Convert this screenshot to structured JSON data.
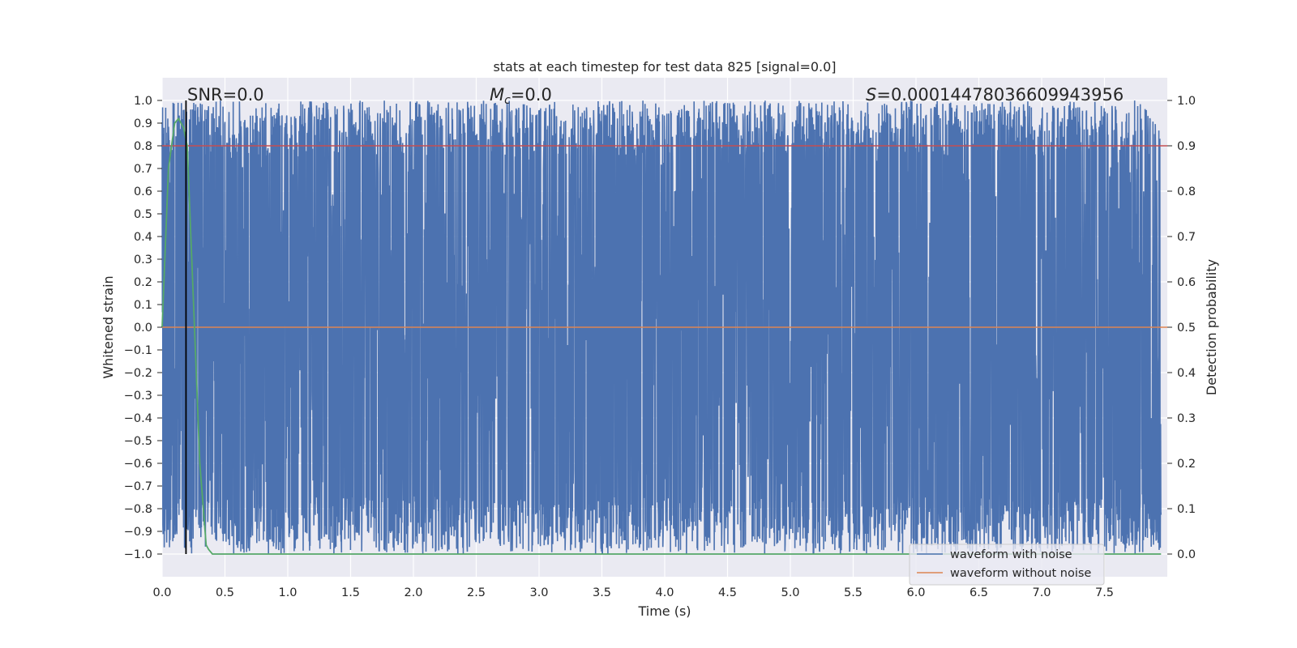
{
  "chart_data": {
    "type": "line",
    "title": "stats at each timestep for test data 825 [signal=0.0]",
    "xlabel": "Time (s)",
    "ylabel": "Whitened strain",
    "ylabel_right": "Detection probability",
    "xlim": [
      0.0,
      8.0
    ],
    "ylim": [
      -1.1,
      1.1
    ],
    "ylim_right": [
      -0.05,
      1.05
    ],
    "x_ticks": [
      "0.0",
      "0.5",
      "1.0",
      "1.5",
      "2.0",
      "2.5",
      "3.0",
      "3.5",
      "4.0",
      "4.5",
      "5.0",
      "5.5",
      "6.0",
      "6.5",
      "7.0",
      "7.5"
    ],
    "y_ticks": [
      "1.0",
      "0.9",
      "0.8",
      "0.7",
      "0.6",
      "0.5",
      "0.4",
      "0.3",
      "0.2",
      "0.1",
      "0.0",
      "−0.1",
      "−0.2",
      "−0.3",
      "−0.4",
      "−0.5",
      "−0.6",
      "−0.7",
      "−0.8",
      "−0.9",
      "−1.0"
    ],
    "y_ticks_right": [
      "1.0",
      "0.9",
      "0.8",
      "0.7",
      "0.6",
      "0.5",
      "0.4",
      "0.3",
      "0.2",
      "0.1",
      "0.0"
    ],
    "grid": true,
    "legend_position": "bottom-right",
    "annotations": {
      "snr": "SNR=0.0",
      "mc_symbol": "M",
      "mc_sub": "c",
      "mc_value": "=0.0",
      "s_symbol": "S",
      "s_value": "=0.00014478036609943956"
    },
    "series": [
      {
        "name": "waveform with noise",
        "color": "#4c72b0",
        "description_values": "dense noise spanning roughly -1.0 to 1.0 across 0-8 s",
        "y_range": [
          -1.0,
          1.0
        ]
      },
      {
        "name": "waveform without noise",
        "color": "#dd8452",
        "x": [
          0.0,
          8.0
        ],
        "y": [
          0.0,
          0.0
        ]
      },
      {
        "color": "#55a868",
        "axis": "right",
        "x": [
          0.0,
          0.05,
          0.1,
          0.13,
          0.17,
          0.2,
          0.25,
          0.3,
          0.35,
          0.37,
          0.4,
          1.0,
          2.0,
          3.0,
          4.0,
          5.0,
          6.0,
          7.0,
          7.95
        ],
        "y": [
          0.5,
          0.85,
          0.95,
          0.96,
          0.94,
          0.9,
          0.55,
          0.2,
          0.02,
          0.01,
          0.0,
          0.0,
          0.0,
          0.0,
          0.0,
          0.0,
          0.0,
          0.0,
          0.0
        ]
      },
      {
        "color": "#c44e52",
        "axis": "right",
        "x": [
          0.0,
          8.0
        ],
        "y": [
          0.9,
          0.9
        ]
      },
      {
        "color": "#000000",
        "type": "vline",
        "x": 0.19
      }
    ]
  },
  "colors": {
    "plot_bg": "#eaeaf2",
    "grid": "#ffffff",
    "noise": "#4c72b0",
    "clean": "#dd8452",
    "prob": "#55a868",
    "threshold": "#c44e52",
    "marker": "#000000"
  }
}
